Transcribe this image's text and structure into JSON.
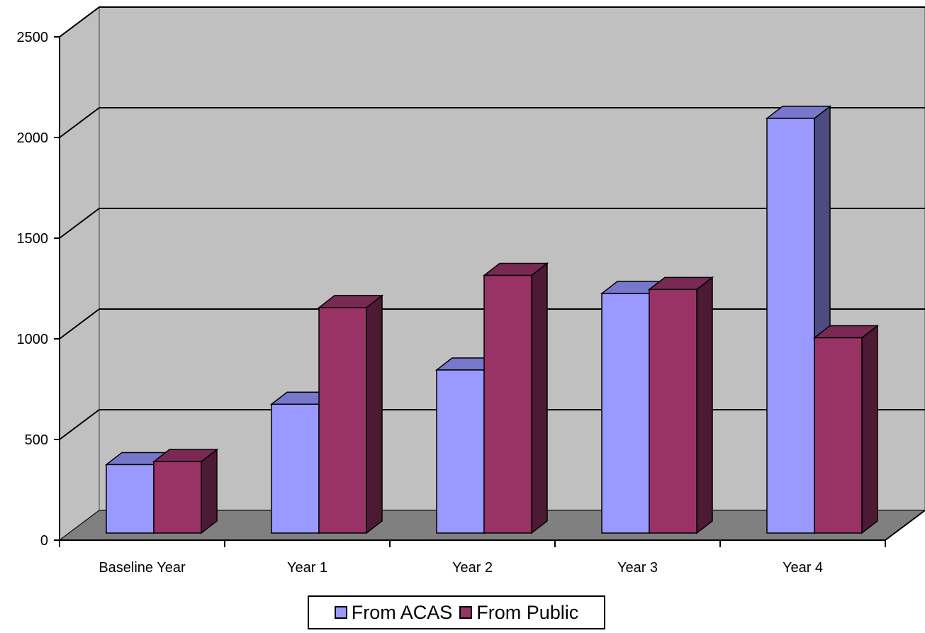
{
  "chart_data": {
    "type": "bar",
    "categories": [
      "Baseline Year",
      "Year 1",
      "Year 2",
      "Year 3",
      "Year 4"
    ],
    "series": [
      {
        "name": "From ACAS",
        "values": [
          340,
          640,
          810,
          1190,
          2060
        ],
        "color": "#9999ff",
        "side_color": "#4c4c80",
        "top_color": "#7777cc"
      },
      {
        "name": "From Public",
        "values": [
          355,
          1120,
          1280,
          1210,
          970
        ],
        "color": "#993366",
        "side_color": "#4d1a33",
        "top_color": "#7a2952"
      }
    ],
    "y_ticks": [
      "0",
      "500",
      "1000",
      "1500",
      "2000",
      "2500"
    ],
    "ylim": [
      0,
      2500
    ],
    "grid": true,
    "legend_position": "bottom",
    "colors": {
      "wall": "#c0c0c0",
      "floor": "#808080"
    }
  }
}
